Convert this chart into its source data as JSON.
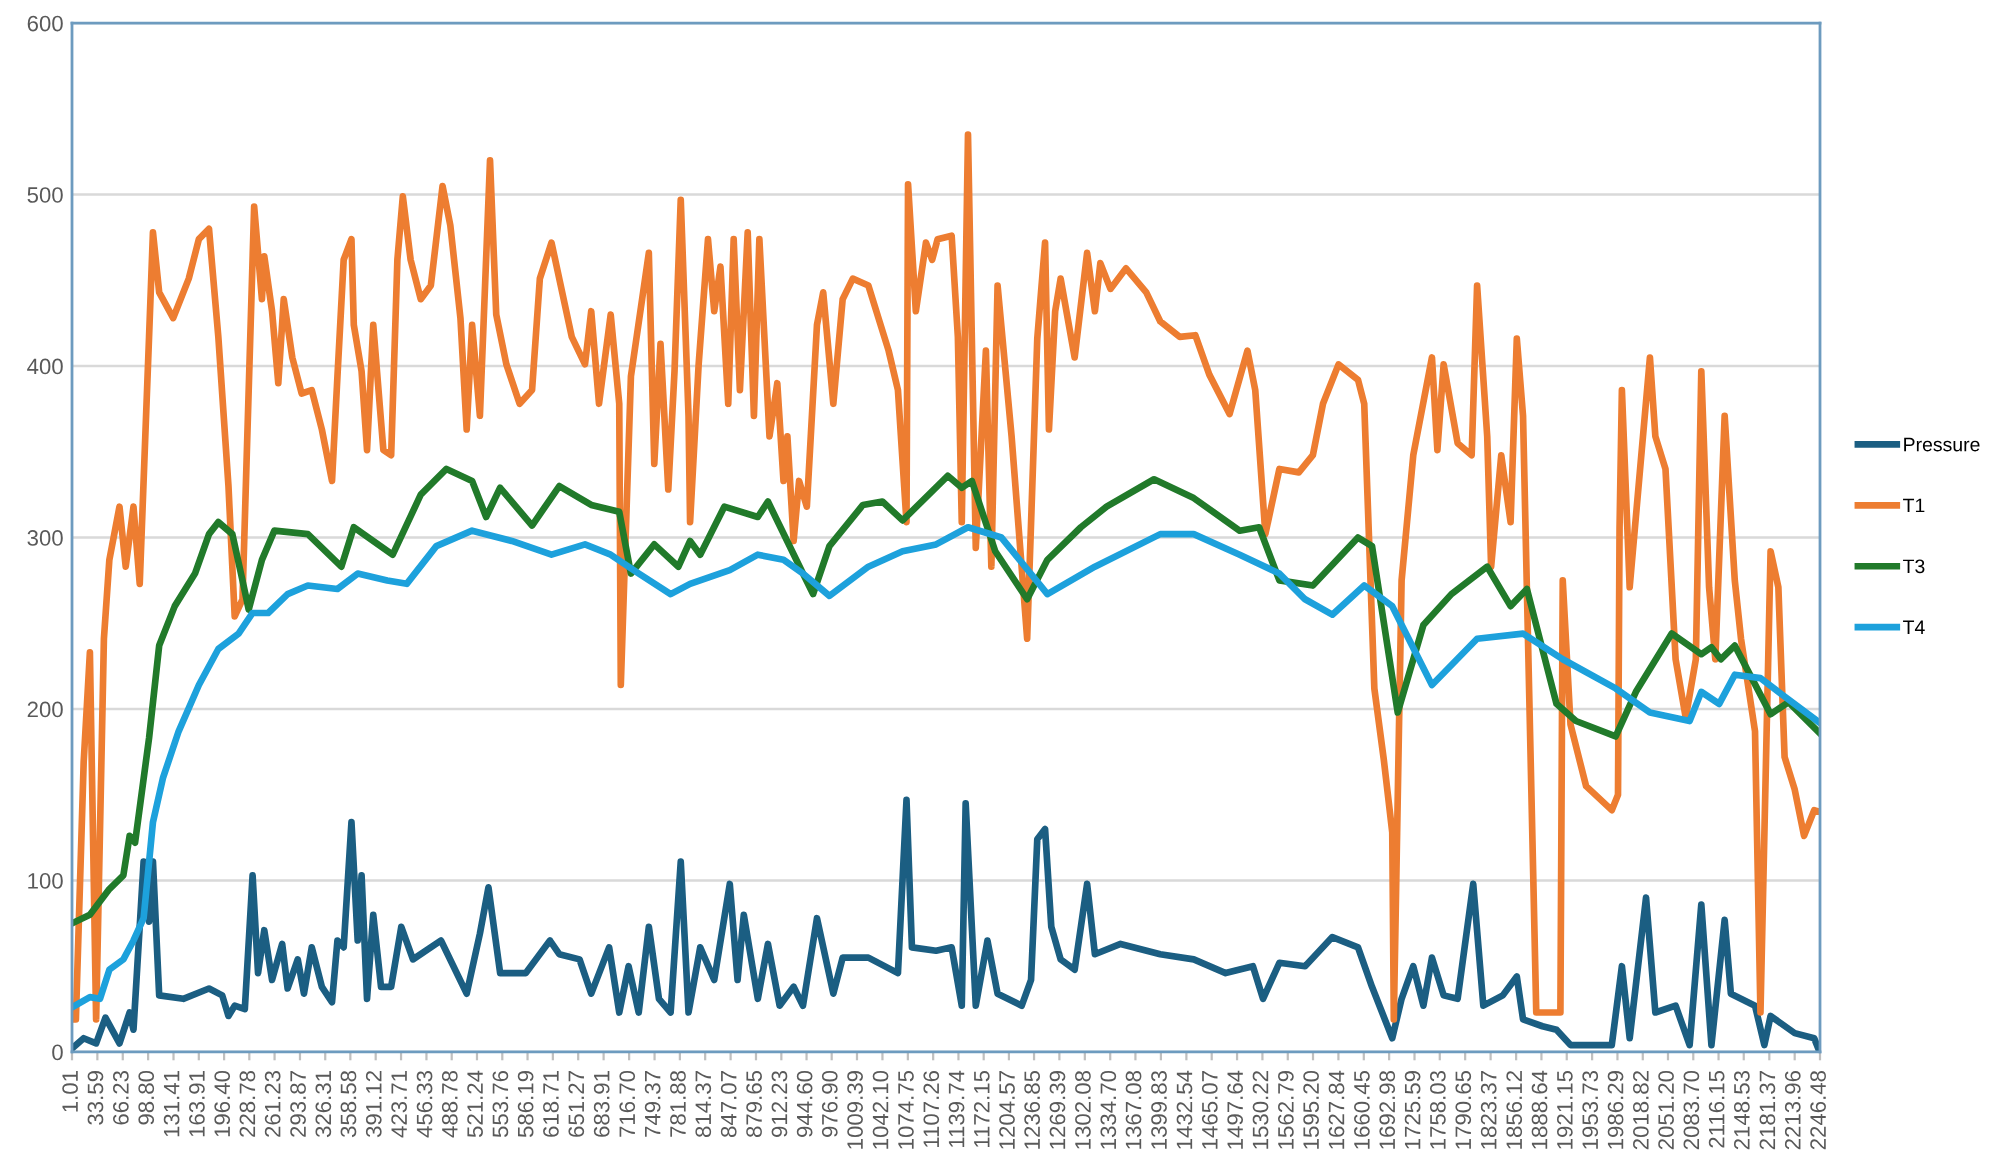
{
  "chart_data": {
    "type": "line",
    "xlim": [
      1.01,
      2246.48
    ],
    "xticks": [
      1.01,
      33.59,
      66.23,
      {
        "value": 98.8,
        "label": "98.80"
      },
      131.41,
      163.91,
      {
        "value": 196.4,
        "label": "196.40"
      },
      228.78,
      261.23,
      293.87,
      326.31,
      358.58,
      391.12,
      423.71,
      456.33,
      488.78,
      521.24,
      553.76,
      586.19,
      618.71,
      651.27,
      683.91,
      {
        "value": 716.7,
        "label": "716.70"
      },
      749.37,
      781.88,
      814.37,
      847.07,
      879.65,
      912.23,
      {
        "value": 944.6,
        "label": "944.60"
      },
      {
        "value": 976.9,
        "label": "976.90"
      },
      1009.39,
      {
        "value": 1042.1,
        "label": "1042.10"
      },
      1074.75,
      1107.26,
      1139.74,
      1172.15,
      1204.57,
      1236.85,
      1269.39,
      1302.08,
      {
        "value": 1334.7,
        "label": "1334.70"
      },
      1367.08,
      1399.83,
      1432.54,
      1465.07,
      1497.64,
      1530.22,
      1562.79,
      {
        "value": 1595.2,
        "label": "1595.20"
      },
      1627.84,
      1660.45,
      1692.98,
      1725.59,
      1758.03,
      1790.65,
      1823.37,
      1856.12,
      1888.64,
      1921.15,
      1953.73,
      1986.29,
      2018.82,
      {
        "value": 2051.2,
        "label": "2051.20"
      },
      {
        "value": 2083.7,
        "label": "2083.70"
      },
      2116.15,
      2148.53,
      2181.37,
      2213.96,
      2246.48
    ],
    "ylim": [
      0,
      600
    ],
    "yticks": [
      0,
      100,
      200,
      300,
      400,
      500,
      600
    ],
    "grid": "y",
    "legend": "right",
    "marker": "none",
    "line_style": "solid",
    "series": [
      {
        "name": "Pressure",
        "color": "#1b5e82",
        "x": [
          1.01,
          16,
          32,
          44,
          62,
          75,
          80,
          93,
          100,
          105,
          113,
          144,
          177,
          194,
          202,
          210,
          223,
          233,
          240,
          248,
          258,
          271,
          278,
          291,
          299,
          309,
          322,
          335,
          342,
          350,
          360,
          368,
          373,
          380,
          388,
          398,
          411,
          424,
          439,
          475,
          508,
          525,
          536,
          551,
          584,
          615,
          627,
          653,
          668,
          691,
          704,
          716,
          729,
          742,
          755,
          770,
          783,
          793,
          808,
          826,
          846,
          856,
          864,
          882,
          895,
          910,
          928,
          940,
          958,
          979,
          991,
          1024,
          1062,
          1073,
          1080,
          1111,
          1131,
          1144,
          1149,
          1162,
          1177,
          1190,
          1221,
          1233,
          1241,
          1251,
          1259,
          1271,
          1289,
          1305,
          1315,
          1348,
          1399,
          1442,
          1483,
          1518,
          1531,
          1552,
          1585,
          1620,
          1653,
          1671,
          1697,
          1709,
          1724,
          1737,
          1748,
          1763,
          1781,
          1801,
          1814,
          1839,
          1857,
          1865,
          1890,
          1908,
          1926,
          1979,
          1992,
          2002,
          2023,
          2035,
          2061,
          2079,
          2094,
          2107,
          2124,
          2132,
          2163,
          2175,
          2183,
          2214,
          2239,
          2246
        ],
        "values": [
          2,
          8,
          5,
          20,
          5,
          23,
          13,
          111,
          76,
          111,
          33,
          31,
          37,
          33,
          21,
          27,
          25,
          103,
          46,
          71,
          42,
          63,
          37,
          54,
          34,
          61,
          38,
          29,
          65,
          61,
          134,
          65,
          103,
          31,
          80,
          38,
          38,
          73,
          54,
          65,
          34,
          69,
          96,
          46,
          46,
          65,
          57,
          54,
          34,
          61,
          23,
          50,
          23,
          73,
          31,
          23,
          111,
          23,
          61,
          42,
          98,
          42,
          80,
          31,
          63,
          27,
          38,
          27,
          78,
          34,
          55,
          55,
          46,
          147,
          61,
          59,
          61,
          27,
          145,
          27,
          65,
          34,
          27,
          42,
          124,
          130,
          73,
          54,
          48,
          98,
          57,
          63,
          57,
          54,
          46,
          50,
          31,
          52,
          50,
          67,
          61,
          38,
          8,
          31,
          50,
          27,
          55,
          33,
          31,
          98,
          27,
          33,
          44,
          19,
          15,
          13,
          4,
          4,
          50,
          8,
          90,
          23,
          27,
          4,
          86,
          4,
          77,
          34,
          27,
          4,
          21,
          11,
          8,
          0
        ]
      },
      {
        "name": "T1",
        "color": "#ed7d31",
        "x": [
          1.01,
          6,
          16,
          24,
          32,
          42,
          49,
          62,
          70,
          80,
          88,
          100,
          105,
          113,
          131,
          151,
          164,
          177,
          189,
          202,
          210,
          220,
          235,
          245,
          248,
          258,
          266,
          273,
          284,
          296,
          309,
          322,
          335,
          342,
          350,
          360,
          363,
          373,
          380,
          388,
          401,
          411,
          419,
          426,
          436,
          449,
          462,
          477,
          487,
          500,
          508,
          515,
          525,
          538,
          546,
          559,
          576,
          592,
          602,
          617,
          643,
          660,
          668,
          678,
          693,
          704,
          706,
          719,
          742,
          749,
          757,
          767,
          775,
          783,
          793,
          795,
          806,
          818,
          826,
          834,
          844,
          851,
          859,
          869,
          877,
          884,
          897,
          907,
          915,
          920,
          928,
          935,
          945,
          958,
          966,
          979,
          991,
          1004,
          1024,
          1050,
          1062,
          1073,
          1075,
          1085,
          1098,
          1106,
          1113,
          1131,
          1139,
          1144,
          1152,
          1162,
          1175,
          1182,
          1190,
          1208,
          1228,
          1241,
          1251,
          1256,
          1264,
          1271,
          1289,
          1305,
          1315,
          1322,
          1335,
          1355,
          1381,
          1399,
          1424,
          1444,
          1462,
          1488,
          1511,
          1521,
          1534,
          1552,
          1577,
          1595,
          1608,
          1628,
          1653,
          1661,
          1674,
          1686,
          1697,
          1699,
          1709,
          1724,
          1748,
          1755,
          1763,
          1781,
          1799,
          1806,
          1819,
          1824,
          1837,
          1849,
          1857,
          1865,
          1882,
          1913,
          1916,
          1926,
          1946,
          1979,
          1987,
          1989,
          1992,
          2002,
          2028,
          2035,
          2048,
          2061,
          2074,
          2087,
          2094,
          2104,
          2112,
          2124,
          2137,
          2145,
          2163,
          2170,
          2183,
          2193,
          2201,
          2214,
          2226,
          2239,
          2246
        ],
        "values": [
          19,
          19,
          169,
          233,
          19,
          241,
          287,
          318,
          283,
          318,
          273,
          417,
          478,
          443,
          428,
          451,
          474,
          480,
          417,
          330,
          254,
          264,
          493,
          439,
          464,
          432,
          390,
          439,
          405,
          384,
          386,
          363,
          333,
          394,
          462,
          474,
          424,
          397,
          351,
          424,
          351,
          348,
          462,
          499,
          462,
          439,
          447,
          505,
          482,
          428,
          363,
          424,
          371,
          520,
          430,
          401,
          378,
          386,
          451,
          472,
          417,
          401,
          432,
          378,
          430,
          378,
          214,
          394,
          466,
          343,
          413,
          328,
          397,
          497,
          371,
          309,
          401,
          474,
          432,
          458,
          378,
          474,
          386,
          478,
          371,
          474,
          359,
          390,
          333,
          359,
          298,
          333,
          318,
          424,
          443,
          378,
          439,
          451,
          447,
          409,
          386,
          309,
          506,
          432,
          472,
          462,
          474,
          476,
          417,
          309,
          535,
          294,
          409,
          283,
          447,
          359,
          241,
          416,
          472,
          363,
          432,
          451,
          405,
          466,
          432,
          460,
          445,
          457,
          443,
          426,
          417,
          418,
          395,
          372,
          409,
          386,
          302,
          340,
          338,
          348,
          378,
          401,
          392,
          378,
          212,
          171,
          128,
          19,
          275,
          348,
          405,
          351,
          401,
          355,
          348,
          447,
          359,
          283,
          348,
          309,
          416,
          371,
          23,
          23,
          275,
          191,
          155,
          141,
          150,
          306,
          386,
          271,
          405,
          359,
          340,
          229,
          195,
          229,
          397,
          271,
          229,
          371,
          275,
          241,
          187,
          23,
          292,
          271,
          172,
          153,
          126,
          141,
          140
        ]
      },
      {
        "name": "T3",
        "color": "#217a2a",
        "x": [
          1.01,
          24,
          49,
          67,
          75,
          82,
          100,
          113,
          133,
          159,
          177,
          189,
          207,
          220,
          228,
          245,
          261,
          304,
          347,
          363,
          413,
          449,
          482,
          515,
          533,
          551,
          592,
          627,
          668,
          704,
          719,
          749,
          780,
          795,
          808,
          839,
          882,
          895,
          940,
          953,
          974,
          1017,
          1042,
          1068,
          1126,
          1144,
          1157,
          1187,
          1228,
          1254,
          1297,
          1330,
          1391,
          1442,
          1501,
          1526,
          1552,
          1595,
          1653,
          1671,
          1704,
          1737,
          1773,
          1819,
          1849,
          1870,
          1908,
          1933,
          1984,
          2010,
          2056,
          2094,
          2107,
          2119,
          2137,
          2183,
          2206,
          2246
        ],
        "values": [
          75,
          80,
          95,
          103,
          126,
          122,
          183,
          237,
          260,
          279,
          302,
          309,
          302,
          275,
          258,
          287,
          304,
          302,
          283,
          306,
          290,
          325,
          340,
          333,
          312,
          329,
          307,
          330,
          319,
          315,
          279,
          296,
          283,
          298,
          290,
          318,
          312,
          321,
          279,
          267,
          295,
          319,
          321,
          310,
          336,
          329,
          333,
          292,
          264,
          287,
          306,
          318,
          334,
          323,
          304,
          306,
          275,
          272,
          300,
          295,
          198,
          249,
          267,
          283,
          260,
          270,
          203,
          193,
          184,
          210,
          244,
          232,
          236,
          229,
          237,
          197,
          204,
          186
        ]
      },
      {
        "name": "T4",
        "color": "#1da1dc",
        "x": [
          1.01,
          24,
          37,
          49,
          67,
          80,
          93,
          105,
          118,
          138,
          164,
          189,
          215,
          233,
          253,
          278,
          304,
          342,
          368,
          406,
          431,
          469,
          515,
          566,
          617,
          660,
          693,
          729,
          770,
          795,
          846,
          882,
          915,
          940,
          974,
          1024,
          1068,
          1111,
          1152,
          1195,
          1254,
          1315,
          1399,
          1442,
          1501,
          1552,
          1585,
          1620,
          1661,
          1697,
          1748,
          1806,
          1865,
          1916,
          1984,
          2028,
          2079,
          2094,
          2117,
          2137,
          2170,
          2196,
          2246
        ],
        "values": [
          26,
          32,
          31,
          48,
          54,
          65,
          78,
          134,
          160,
          187,
          214,
          235,
          244,
          256,
          256,
          267,
          272,
          270,
          279,
          275,
          273,
          295,
          304,
          298,
          290,
          296,
          290,
          279,
          267,
          273,
          281,
          290,
          287,
          279,
          266,
          283,
          292,
          296,
          306,
          300,
          267,
          283,
          302,
          302,
          290,
          279,
          264,
          255,
          272,
          260,
          214,
          241,
          244,
          229,
          212,
          198,
          193,
          210,
          203,
          220,
          218,
          209,
          192
        ]
      }
    ]
  }
}
